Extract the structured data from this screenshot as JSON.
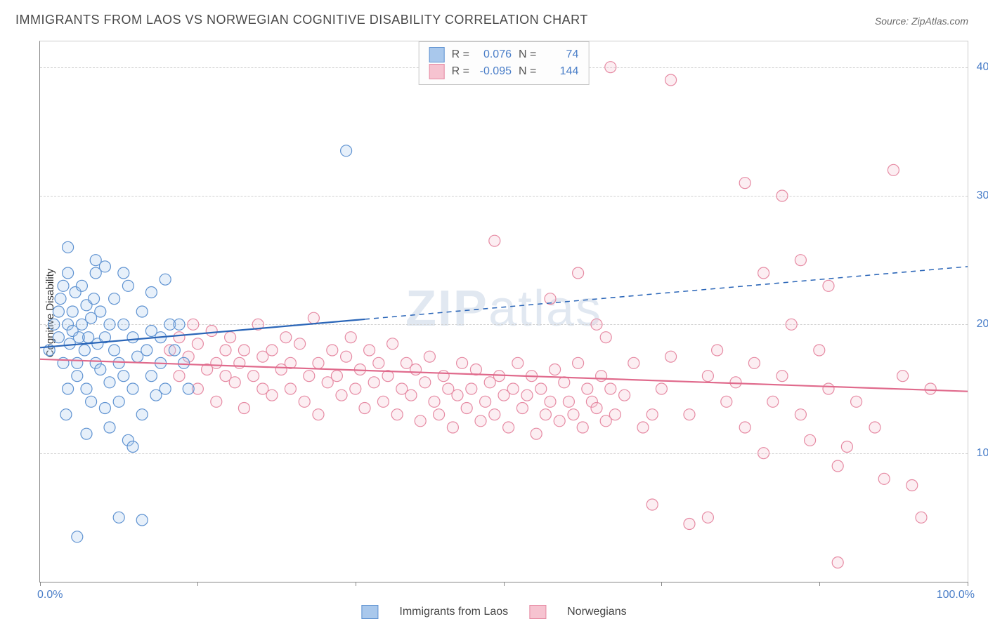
{
  "title": "IMMIGRANTS FROM LAOS VS NORWEGIAN COGNITIVE DISABILITY CORRELATION CHART",
  "source": "Source: ZipAtlas.com",
  "ylabel": "Cognitive Disability",
  "watermark_a": "ZIP",
  "watermark_b": "atlas",
  "chart": {
    "type": "scatter",
    "xlim": [
      0,
      100
    ],
    "ylim": [
      0,
      42
    ],
    "xtick_positions": [
      0,
      17,
      34,
      50,
      67,
      84,
      100
    ],
    "ytick_labels": [
      "10.0%",
      "20.0%",
      "30.0%",
      "40.0%"
    ],
    "ytick_values": [
      10,
      20,
      30,
      40
    ],
    "x_start_label": "0.0%",
    "x_end_label": "100.0%",
    "background_color": "#ffffff",
    "grid_color": "#d0d0d0",
    "axis_color": "#888888",
    "text_color": "#4a7ec8",
    "marker_radius": 8,
    "marker_stroke_width": 1.2,
    "marker_fill_opacity": 0.28,
    "line_width": 2.2
  },
  "series_a": {
    "label": "Immigrants from Laos",
    "fill": "#a9c8ec",
    "stroke": "#5e92d1",
    "line_color": "#2b66b8",
    "R": "0.076",
    "N": "74",
    "trend": {
      "x1": 0,
      "y1": 18.2,
      "x2": 100,
      "y2": 24.5,
      "solid_until_x": 35
    },
    "points": [
      [
        1,
        18
      ],
      [
        1.5,
        20
      ],
      [
        2,
        21
      ],
      [
        2,
        19
      ],
      [
        2.2,
        22
      ],
      [
        2.5,
        17
      ],
      [
        2.5,
        23
      ],
      [
        3,
        20
      ],
      [
        3,
        15
      ],
      [
        3,
        24
      ],
      [
        3.2,
        18.5
      ],
      [
        3.5,
        21
      ],
      [
        3.5,
        19.5
      ],
      [
        3.8,
        22.5
      ],
      [
        4,
        17
      ],
      [
        4,
        16
      ],
      [
        4.2,
        19
      ],
      [
        4.5,
        23
      ],
      [
        4.5,
        20
      ],
      [
        4.8,
        18
      ],
      [
        5,
        21.5
      ],
      [
        5,
        15
      ],
      [
        5.2,
        19
      ],
      [
        5.5,
        14
      ],
      [
        5.5,
        20.5
      ],
      [
        5.8,
        22
      ],
      [
        6,
        24
      ],
      [
        6,
        17
      ],
      [
        6.2,
        18.5
      ],
      [
        6.5,
        16.5
      ],
      [
        6.5,
        21
      ],
      [
        7,
        19
      ],
      [
        7,
        13.5
      ],
      [
        7.5,
        20
      ],
      [
        7.5,
        15.5
      ],
      [
        8,
        22
      ],
      [
        8,
        18
      ],
      [
        8.5,
        14
      ],
      [
        8.5,
        17
      ],
      [
        9,
        20
      ],
      [
        9,
        16
      ],
      [
        9.5,
        23
      ],
      [
        9.5,
        11
      ],
      [
        10,
        19
      ],
      [
        10,
        15
      ],
      [
        10.5,
        17.5
      ],
      [
        11,
        21
      ],
      [
        11,
        13
      ],
      [
        11.5,
        18
      ],
      [
        12,
        16
      ],
      [
        12,
        22.5
      ],
      [
        12.5,
        14.5
      ],
      [
        13,
        19
      ],
      [
        13,
        17
      ],
      [
        13.5,
        15
      ],
      [
        14,
        20
      ],
      [
        6,
        25
      ],
      [
        10,
        10.5
      ],
      [
        3,
        26
      ],
      [
        7,
        24.5
      ],
      [
        4,
        3.5
      ],
      [
        8.5,
        5
      ],
      [
        11,
        4.8
      ],
      [
        9,
        24
      ],
      [
        13.5,
        23.5
      ],
      [
        15,
        20
      ],
      [
        16,
        15
      ],
      [
        5,
        11.5
      ],
      [
        7.5,
        12
      ],
      [
        2.8,
        13
      ],
      [
        33,
        33.5
      ],
      [
        14.5,
        18
      ],
      [
        15.5,
        17
      ],
      [
        12,
        19.5
      ]
    ]
  },
  "series_b": {
    "label": "Norwegians",
    "fill": "#f6c3d0",
    "stroke": "#e68aa3",
    "line_color": "#e06a8c",
    "R": "-0.095",
    "N": "144",
    "trend": {
      "x1": 0,
      "y1": 17.3,
      "x2": 100,
      "y2": 14.8,
      "solid_until_x": 100
    },
    "points": [
      [
        14,
        18
      ],
      [
        15,
        19
      ],
      [
        15,
        16
      ],
      [
        16,
        17.5
      ],
      [
        16.5,
        20
      ],
      [
        17,
        15
      ],
      [
        17,
        18.5
      ],
      [
        18,
        16.5
      ],
      [
        18.5,
        19.5
      ],
      [
        19,
        17
      ],
      [
        19,
        14
      ],
      [
        20,
        18
      ],
      [
        20,
        16
      ],
      [
        20.5,
        19
      ],
      [
        21,
        15.5
      ],
      [
        21.5,
        17
      ],
      [
        22,
        18
      ],
      [
        22,
        13.5
      ],
      [
        23,
        16
      ],
      [
        23.5,
        20
      ],
      [
        24,
        17.5
      ],
      [
        24,
        15
      ],
      [
        25,
        18
      ],
      [
        25,
        14.5
      ],
      [
        26,
        16.5
      ],
      [
        26.5,
        19
      ],
      [
        27,
        15
      ],
      [
        27,
        17
      ],
      [
        28,
        18.5
      ],
      [
        28.5,
        14
      ],
      [
        29,
        16
      ],
      [
        29.5,
        20.5
      ],
      [
        30,
        17
      ],
      [
        30,
        13
      ],
      [
        31,
        15.5
      ],
      [
        31.5,
        18
      ],
      [
        32,
        16
      ],
      [
        32.5,
        14.5
      ],
      [
        33,
        17.5
      ],
      [
        33.5,
        19
      ],
      [
        34,
        15
      ],
      [
        34.5,
        16.5
      ],
      [
        35,
        13.5
      ],
      [
        35.5,
        18
      ],
      [
        36,
        15.5
      ],
      [
        36.5,
        17
      ],
      [
        37,
        14
      ],
      [
        37.5,
        16
      ],
      [
        38,
        18.5
      ],
      [
        38.5,
        13
      ],
      [
        39,
        15
      ],
      [
        39.5,
        17
      ],
      [
        40,
        14.5
      ],
      [
        40.5,
        16.5
      ],
      [
        41,
        12.5
      ],
      [
        41.5,
        15.5
      ],
      [
        42,
        17.5
      ],
      [
        42.5,
        14
      ],
      [
        43,
        13
      ],
      [
        43.5,
        16
      ],
      [
        44,
        15
      ],
      [
        44.5,
        12
      ],
      [
        45,
        14.5
      ],
      [
        45.5,
        17
      ],
      [
        46,
        13.5
      ],
      [
        46.5,
        15
      ],
      [
        47,
        16.5
      ],
      [
        47.5,
        12.5
      ],
      [
        48,
        14
      ],
      [
        48.5,
        15.5
      ],
      [
        49,
        13
      ],
      [
        49.5,
        16
      ],
      [
        50,
        14.5
      ],
      [
        50.5,
        12
      ],
      [
        51,
        15
      ],
      [
        51.5,
        17
      ],
      [
        52,
        13.5
      ],
      [
        52.5,
        14.5
      ],
      [
        53,
        16
      ],
      [
        53.5,
        11.5
      ],
      [
        54,
        15
      ],
      [
        54.5,
        13
      ],
      [
        55,
        14
      ],
      [
        55.5,
        16.5
      ],
      [
        56,
        12.5
      ],
      [
        56.5,
        15.5
      ],
      [
        57,
        14
      ],
      [
        57.5,
        13
      ],
      [
        58,
        17
      ],
      [
        58.5,
        12
      ],
      [
        59,
        15
      ],
      [
        59.5,
        14
      ],
      [
        60,
        13.5
      ],
      [
        60.5,
        16
      ],
      [
        61,
        12.5
      ],
      [
        61.5,
        15
      ],
      [
        62,
        13
      ],
      [
        63,
        14.5
      ],
      [
        64,
        17
      ],
      [
        65,
        12
      ],
      [
        49,
        26.5
      ],
      [
        55,
        22
      ],
      [
        58,
        24
      ],
      [
        60,
        20
      ],
      [
        61,
        19
      ],
      [
        66,
        13
      ],
      [
        67,
        15
      ],
      [
        68,
        17.5
      ],
      [
        70,
        13
      ],
      [
        72,
        16
      ],
      [
        73,
        18
      ],
      [
        74,
        14
      ],
      [
        75,
        15.5
      ],
      [
        76,
        12
      ],
      [
        77,
        17
      ],
      [
        78,
        10
      ],
      [
        79,
        14
      ],
      [
        80,
        16
      ],
      [
        81,
        20
      ],
      [
        82,
        13
      ],
      [
        83,
        11
      ],
      [
        84,
        18
      ],
      [
        85,
        15
      ],
      [
        86,
        9
      ],
      [
        61.5,
        40
      ],
      [
        68,
        39
      ],
      [
        76,
        31
      ],
      [
        78,
        24
      ],
      [
        80,
        30
      ],
      [
        82,
        25
      ],
      [
        85,
        23
      ],
      [
        87,
        10.5
      ],
      [
        88,
        14
      ],
      [
        90,
        12
      ],
      [
        91,
        8
      ],
      [
        92,
        32
      ],
      [
        93,
        16
      ],
      [
        94,
        7.5
      ],
      [
        95,
        5
      ],
      [
        96,
        15
      ],
      [
        72,
        5
      ],
      [
        70,
        4.5
      ],
      [
        86,
        1.5
      ],
      [
        66,
        6
      ]
    ]
  },
  "legend": {
    "r_label": "R =",
    "n_label": "N ="
  }
}
